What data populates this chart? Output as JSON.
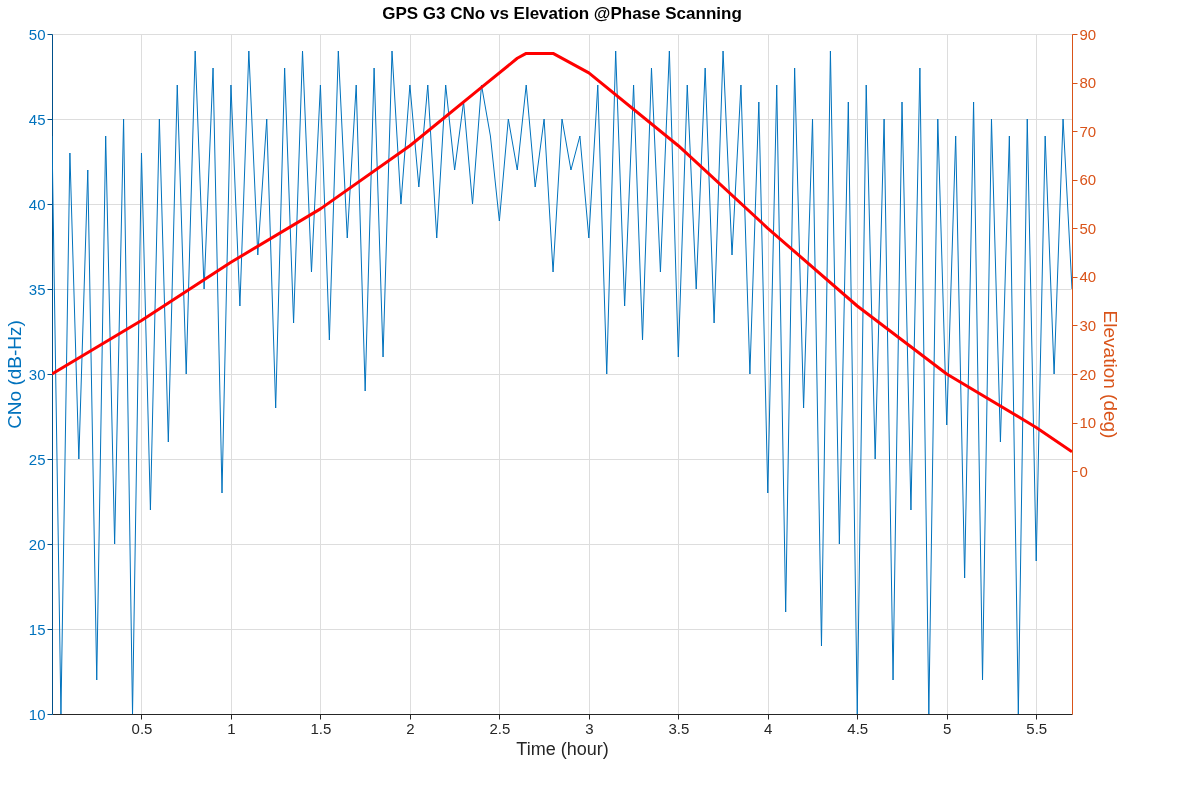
{
  "chart_data": {
    "type": "line",
    "title": "GPS G3 CNo vs Elevation @Phase Scanning",
    "xlabel": "Time (hour)",
    "ylabel": "CNo (dB-Hz)",
    "y2label": "Elevation (deg)",
    "xlim": [
      0,
      5.7
    ],
    "xticks": [
      0.5,
      1,
      1.5,
      2,
      2.5,
      3,
      3.5,
      4,
      4.5,
      5,
      5.5
    ],
    "ylim": [
      10,
      50
    ],
    "yticks": [
      10,
      15,
      20,
      25,
      30,
      35,
      40,
      45,
      50
    ],
    "y2lim": [
      -50,
      90
    ],
    "y2ticks": [
      0,
      10,
      20,
      30,
      40,
      50,
      60,
      70,
      80,
      90
    ],
    "grid": true,
    "line_style": "solid",
    "x": [
      0,
      0.05,
      0.1,
      0.15,
      0.2,
      0.25,
      0.3,
      0.35,
      0.4,
      0.45,
      0.5,
      0.55,
      0.6,
      0.65,
      0.7,
      0.75,
      0.8,
      0.85,
      0.9,
      0.95,
      1,
      1.05,
      1.1,
      1.15,
      1.2,
      1.25,
      1.3,
      1.35,
      1.4,
      1.45,
      1.5,
      1.55,
      1.6,
      1.65,
      1.7,
      1.75,
      1.8,
      1.85,
      1.9,
      1.95,
      2,
      2.05,
      2.1,
      2.15,
      2.2,
      2.25,
      2.3,
      2.35,
      2.4,
      2.45,
      2.5,
      2.55,
      2.6,
      2.65,
      2.7,
      2.75,
      2.8,
      2.85,
      2.9,
      2.95,
      3,
      3.05,
      3.1,
      3.15,
      3.2,
      3.25,
      3.3,
      3.35,
      3.4,
      3.45,
      3.5,
      3.55,
      3.6,
      3.65,
      3.7,
      3.75,
      3.8,
      3.85,
      3.9,
      3.95,
      4,
      4.05,
      4.1,
      4.15,
      4.2,
      4.25,
      4.3,
      4.35,
      4.4,
      4.45,
      4.5,
      4.55,
      4.6,
      4.65,
      4.7,
      4.75,
      4.8,
      4.85,
      4.9,
      4.95,
      5,
      5.05,
      5.1,
      5.15,
      5.2,
      5.25,
      5.3,
      5.35,
      5.4,
      5.45,
      5.5,
      5.55,
      5.6,
      5.65,
      5.7
    ],
    "series": [
      {
        "color": "#0072bd",
        "axis": "y",
        "values": [
          44,
          10,
          43,
          25,
          42,
          12,
          44,
          20,
          45,
          10,
          43,
          22,
          45,
          26,
          47,
          30,
          49,
          35,
          48,
          23,
          47,
          34,
          49,
          37,
          45,
          28,
          48,
          33,
          49,
          36,
          47,
          32,
          49,
          38,
          47,
          29,
          48,
          31,
          49,
          40,
          47,
          41,
          47,
          38,
          47,
          42,
          46,
          40,
          47,
          44,
          39,
          45,
          42,
          47,
          41,
          45,
          36,
          45,
          42,
          44,
          38,
          47,
          30,
          49,
          34,
          47,
          32,
          48,
          36,
          49,
          31,
          47,
          35,
          48,
          33,
          49,
          37,
          47,
          30,
          46,
          23,
          47,
          16,
          48,
          28,
          45,
          14,
          49,
          20,
          46,
          10,
          47,
          25,
          45,
          12,
          46,
          22,
          48,
          10,
          45,
          27,
          44,
          18,
          46,
          12,
          45,
          26,
          44,
          10,
          45,
          19,
          44,
          30,
          45,
          35
        ]
      },
      {
        "color": "#ff0000",
        "axis": "y2",
        "x": [
          0,
          0.5,
          1,
          1.5,
          2,
          2.4,
          2.6,
          2.65,
          2.8,
          3,
          3.5,
          4,
          4.5,
          5,
          5.5,
          5.7
        ],
        "values": [
          20,
          31,
          43,
          54,
          67,
          79,
          85,
          86,
          86,
          82,
          67,
          50,
          34,
          20,
          9,
          4
        ]
      }
    ]
  }
}
